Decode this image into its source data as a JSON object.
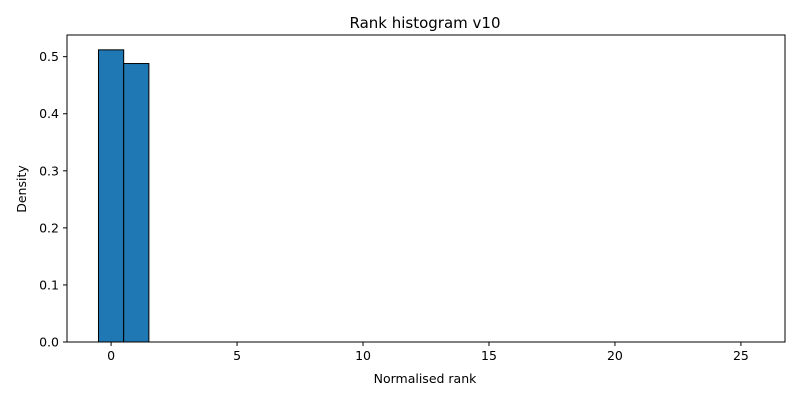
{
  "chart_data": {
    "type": "bar",
    "title": "Rank histogram v10",
    "xlabel": "Normalised rank",
    "ylabel": "Density",
    "bin_width": 1,
    "bins": [
      {
        "x": 0,
        "value": 0.512
      },
      {
        "x": 1,
        "value": 0.488
      },
      {
        "x": 2,
        "value": 0
      },
      {
        "x": 3,
        "value": 0
      },
      {
        "x": 4,
        "value": 0
      },
      {
        "x": 5,
        "value": 0
      },
      {
        "x": 6,
        "value": 0
      },
      {
        "x": 7,
        "value": 0
      },
      {
        "x": 8,
        "value": 0
      },
      {
        "x": 9,
        "value": 0
      },
      {
        "x": 10,
        "value": 0
      },
      {
        "x": 11,
        "value": 0
      },
      {
        "x": 12,
        "value": 0
      },
      {
        "x": 13,
        "value": 0
      },
      {
        "x": 14,
        "value": 0
      },
      {
        "x": 15,
        "value": 0
      },
      {
        "x": 16,
        "value": 0
      },
      {
        "x": 17,
        "value": 0
      },
      {
        "x": 18,
        "value": 0
      },
      {
        "x": 19,
        "value": 0
      },
      {
        "x": 20,
        "value": 0
      },
      {
        "x": 21,
        "value": 0
      },
      {
        "x": 22,
        "value": 0
      },
      {
        "x": 23,
        "value": 0
      },
      {
        "x": 24,
        "value": 0
      },
      {
        "x": 25,
        "value": 0
      }
    ],
    "xlim": [
      -1.75,
      26.75
    ],
    "ylim": [
      0,
      0.538
    ],
    "xticks": [
      0,
      5,
      10,
      15,
      20,
      25
    ],
    "yticks": [
      0.0,
      0.1,
      0.2,
      0.3,
      0.4,
      0.5
    ],
    "grid": false,
    "legend": "none",
    "colors": {
      "bar_fill": "#1f77b4",
      "bar_edge": "#000000"
    }
  }
}
